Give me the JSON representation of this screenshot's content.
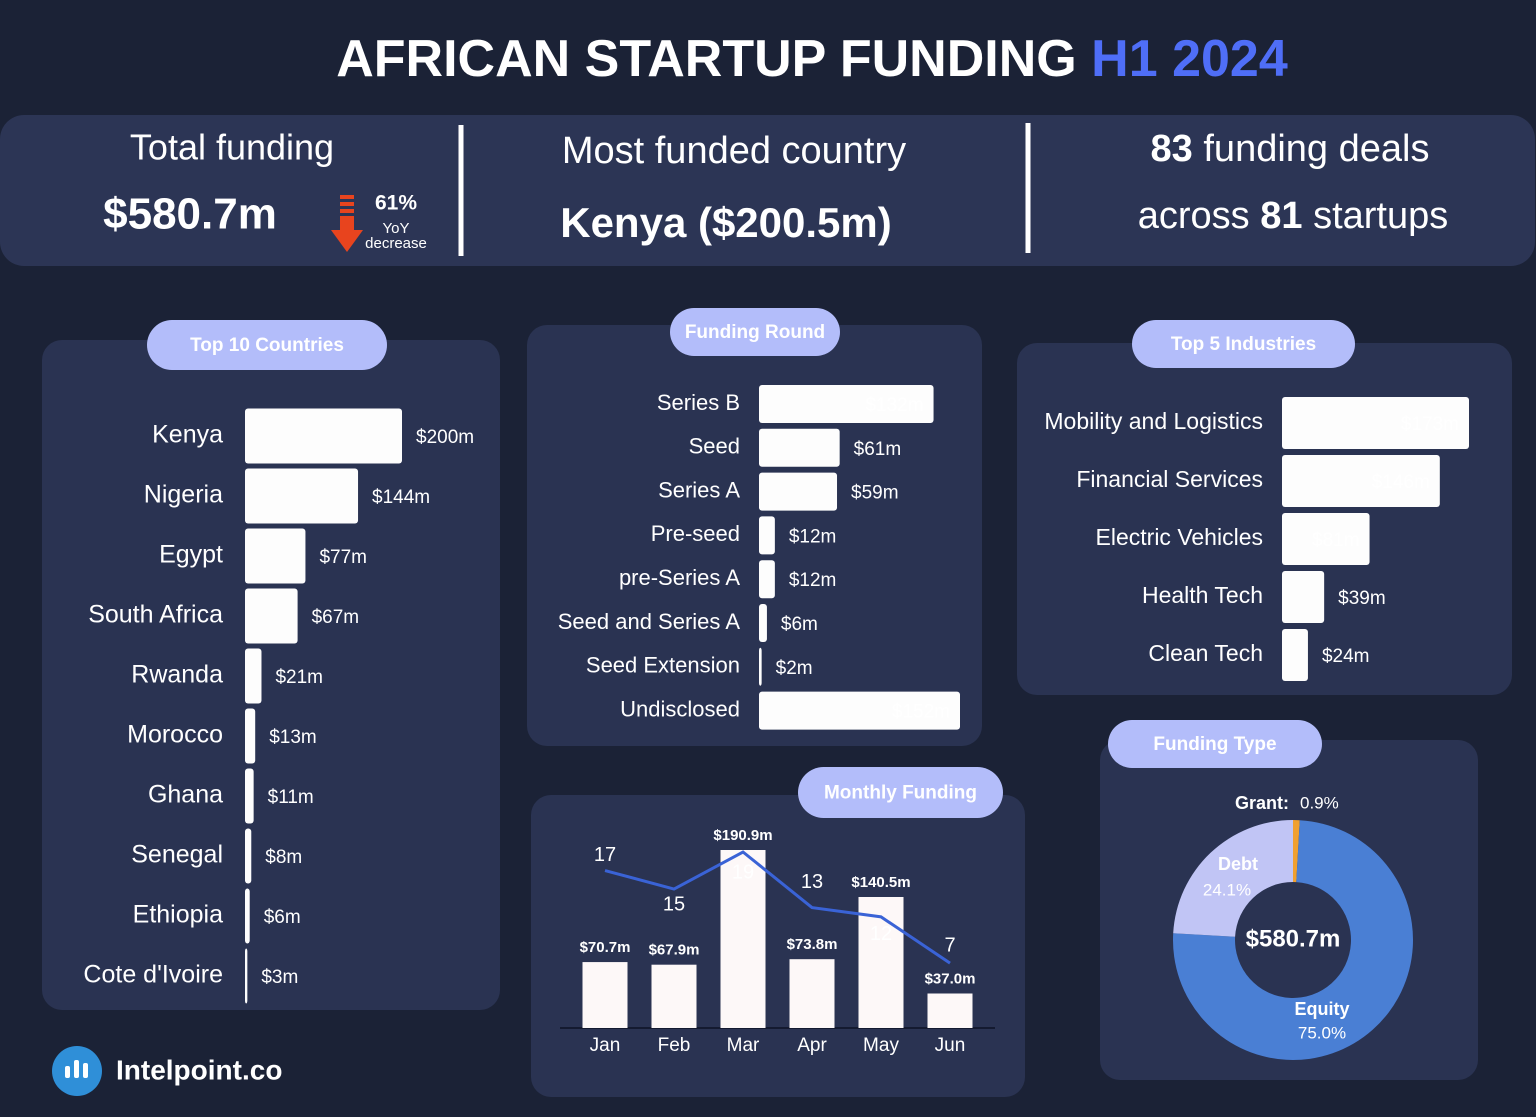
{
  "title": "AFRICAN STARTUP FUNDING",
  "title_highlight": "H1 2024",
  "kpis": {
    "total_label": "Total funding",
    "total_value": "$580.7m",
    "change": "61%",
    "change_unit": "YoY",
    "change_direction": "decrease",
    "country_label": "Most funded country",
    "country_value": "Kenya ($200.5m)",
    "deals_count": "83",
    "deals_text": "funding deals",
    "startups_prefix": "across",
    "startups_count": "81",
    "startups_text": "startups"
  },
  "chart_data": [
    {
      "type": "bar",
      "orientation": "horizontal",
      "title": "Top 10 Countries",
      "categories": [
        "Kenya",
        "Nigeria",
        "Egypt",
        "South Africa",
        "Rwanda",
        "Morocco",
        "Ghana",
        "Senegal",
        "Ethiopia",
        "Cote d'Ivoire"
      ],
      "values": [
        200,
        144,
        77,
        67,
        21,
        13,
        11,
        8,
        6,
        3
      ],
      "value_labels": [
        "$200m",
        "$144m",
        "$77m",
        "$67m",
        "$21m",
        "$13m",
        "$11m",
        "$8m",
        "$6m",
        "$3m"
      ],
      "color": "#fdfdfd"
    },
    {
      "type": "bar",
      "orientation": "horizontal",
      "title": "Funding Round",
      "categories": [
        "Series B",
        "Seed",
        "Series A",
        "Pre-seed",
        "pre-Series A",
        "Seed and Series A",
        "Seed Extension",
        "Undisclosed"
      ],
      "values": [
        132,
        61,
        59,
        12,
        12,
        6,
        2,
        152
      ],
      "value_labels": [
        "$132m",
        "$61m",
        "$59m",
        "$12m",
        "$12m",
        "$6m",
        "$2m",
        "$152m"
      ],
      "color": "#fdfdfd"
    },
    {
      "type": "bar",
      "orientation": "horizontal",
      "title": "Top 5 Industries",
      "categories": [
        "Mobility and Logistics",
        "Financial Services",
        "Electric Vehicles",
        "Health Tech",
        "Clean Tech"
      ],
      "values": [
        173,
        146,
        81,
        39,
        24
      ],
      "value_labels": [
        "$173m",
        "$146m",
        "$81m",
        "$39m",
        "$24m"
      ],
      "color": "#fdfdfd"
    },
    {
      "type": "combo",
      "title": "Monthly Funding",
      "categories": [
        "Jan",
        "Feb",
        "Mar",
        "Apr",
        "May",
        "Jun"
      ],
      "series": [
        {
          "type": "bar",
          "color": "#fdf8f8",
          "values": [
            70.7,
            67.9,
            190.9,
            73.8,
            140.5,
            37.0
          ],
          "value_labels": [
            "$70.7m",
            "$67.9m",
            "$190.9m",
            "$73.8m",
            "$140.5m",
            "$37.0m"
          ]
        },
        {
          "type": "line",
          "color": "#3a63d6",
          "values": [
            17,
            15,
            19,
            13,
            12,
            7
          ]
        }
      ]
    },
    {
      "type": "donut",
      "title": "Funding Type",
      "center_label": "$580.7m",
      "categories": [
        "Grant:",
        "Equity",
        "Debt"
      ],
      "values": [
        0.9,
        75.0,
        24.1
      ],
      "value_labels": [
        "0.9%",
        "75.0%",
        "24.1%"
      ],
      "colors": [
        "#f0a030",
        "#4a7fd4",
        "#c1c5f5"
      ]
    }
  ],
  "footer": "Intelpoint.co"
}
